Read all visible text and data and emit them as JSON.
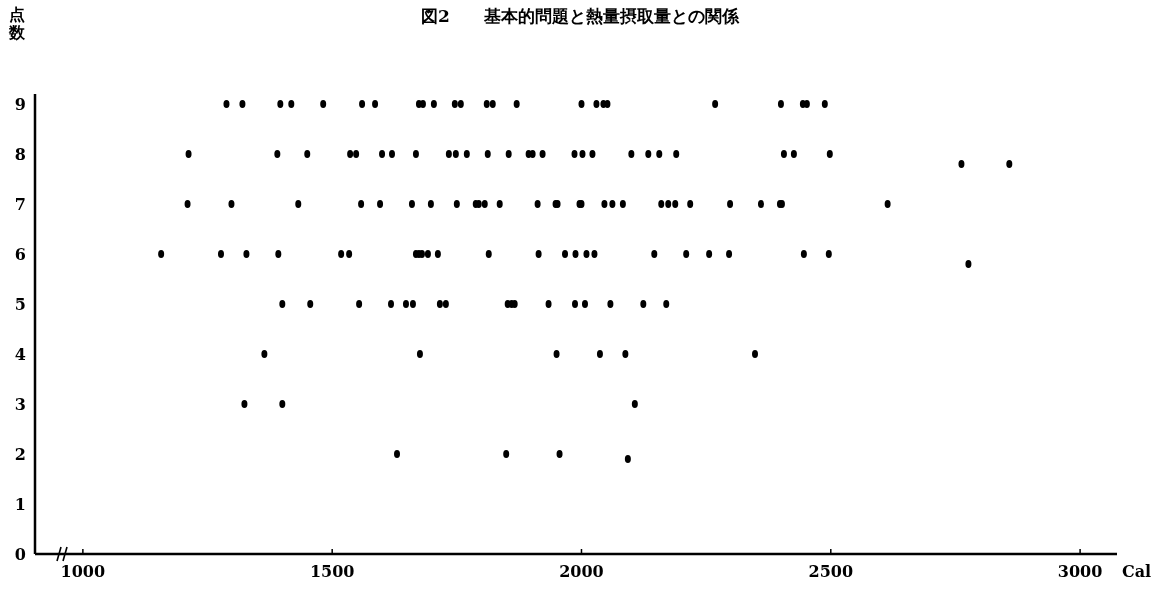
{
  "chart_data": {
    "type": "scatter",
    "title": "図2　　基本的問題と熱量摂取量との関係",
    "ylabel": "点数",
    "xlabel": "Cal",
    "marker": "circle",
    "x": [
      1288,
      1320,
      1396,
      1418,
      1482,
      1560,
      1586,
      1674,
      1682,
      1704,
      1746,
      1758,
      1810,
      1822,
      1870,
      2000,
      2030,
      2044,
      2052,
      2268,
      2400,
      2444,
      2452,
      2488,
      1212,
      1390,
      1450,
      1536,
      1548,
      1600,
      1620,
      1668,
      1734,
      1748,
      1770,
      1812,
      1854,
      1894,
      1902,
      1922,
      1986,
      2002,
      2022,
      2100,
      2134,
      2156,
      2190,
      2406,
      2426,
      2498,
      2762,
      2858,
      1210,
      1298,
      1432,
      1558,
      1596,
      1660,
      1698,
      1750,
      1788,
      1794,
      1806,
      1836,
      1912,
      1948,
      1952,
      1996,
      2000,
      2046,
      2062,
      2083,
      2160,
      2174,
      2188,
      2218,
      2298,
      2360,
      2398,
      2402,
      2614,
      1157,
      1277,
      1328,
      1392,
      1518,
      1534,
      1668,
      1674,
      1680,
      1692,
      1712,
      1814,
      1914,
      1967,
      1988,
      2010,
      2026,
      2146,
      2210,
      2256,
      2296,
      2446,
      2496,
      2776,
      1400,
      1456,
      1554,
      1618,
      1648,
      1662,
      1716,
      1728,
      1852,
      1860,
      1866,
      1934,
      1987,
      2007,
      2058,
      2124,
      2170,
      1364,
      1676,
      1950,
      2037,
      2088,
      2348,
      1324,
      1400,
      2107,
      1630,
      1849,
      1956,
      2093
    ],
    "values": [
      9,
      9,
      9,
      9,
      9,
      9,
      9,
      9,
      9,
      9,
      9,
      9,
      9,
      9,
      9,
      9,
      9,
      9,
      9,
      9,
      9,
      9,
      9,
      9,
      8,
      8,
      8,
      8,
      8,
      8,
      8,
      8,
      8,
      8,
      8,
      8,
      8,
      8,
      8,
      8,
      8,
      8,
      8,
      8,
      8,
      8,
      8,
      8,
      8,
      8,
      7.8,
      7.8,
      7,
      7,
      7,
      7,
      7,
      7,
      7,
      7,
      7,
      7,
      7,
      7,
      7,
      7,
      7,
      7,
      7,
      7,
      7,
      7,
      7,
      7,
      7,
      7,
      7,
      7,
      7,
      7,
      7,
      6,
      6,
      6,
      6,
      6,
      6,
      6,
      6,
      6,
      6,
      6,
      6,
      6,
      6,
      6,
      6,
      6,
      6,
      6,
      6,
      6,
      6,
      6,
      5.8,
      5,
      5,
      5,
      5,
      5,
      5,
      5,
      5,
      5,
      5,
      5,
      5,
      5,
      5,
      5,
      5,
      5,
      4,
      4,
      4,
      4,
      4,
      4,
      3,
      3,
      3,
      2,
      2,
      2,
      1.9
    ],
    "color": "#000000",
    "xlim": [
      904,
      3074
    ],
    "xticks": [
      1000,
      1500,
      2000,
      2500,
      3000
    ],
    "ylim": [
      0,
      9.2
    ],
    "yticks": [
      {
        "value": 0,
        "label": "0"
      },
      1,
      2,
      3,
      4,
      5,
      6,
      7,
      8,
      9
    ]
  }
}
